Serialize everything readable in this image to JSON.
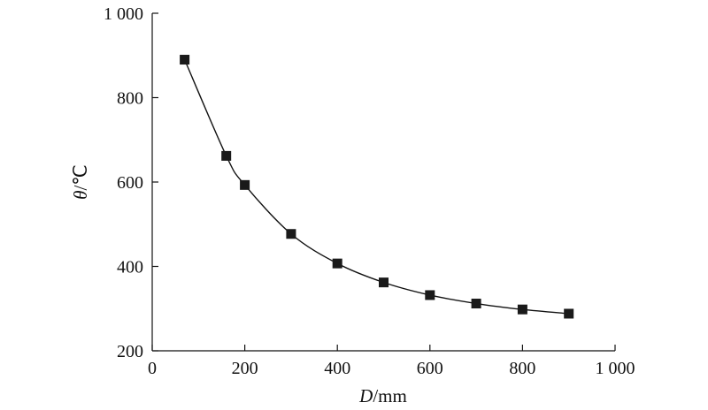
{
  "chart_data": {
    "type": "line",
    "title": "",
    "xlabel": {
      "var": "D",
      "unit": "/mm"
    },
    "ylabel": {
      "var": "θ",
      "unit": "/℃"
    },
    "xlim": [
      0,
      1000
    ],
    "ylim": [
      200,
      1000
    ],
    "x_ticks": [
      0,
      200,
      400,
      600,
      800,
      1000
    ],
    "y_ticks": [
      200,
      400,
      600,
      800,
      1000
    ],
    "x_tick_labels": [
      "0",
      "200",
      "400",
      "600",
      "800",
      "1 000"
    ],
    "y_tick_labels": [
      "200",
      "400",
      "600",
      "800",
      "1 000"
    ],
    "grid": false,
    "legend": "none",
    "marker": "square",
    "series": [
      {
        "x": [
          70,
          160,
          200,
          300,
          400,
          500,
          600,
          700,
          800,
          900
        ],
        "y": [
          890,
          662,
          593,
          477,
          407,
          362,
          332,
          312,
          298,
          288
        ]
      }
    ]
  }
}
